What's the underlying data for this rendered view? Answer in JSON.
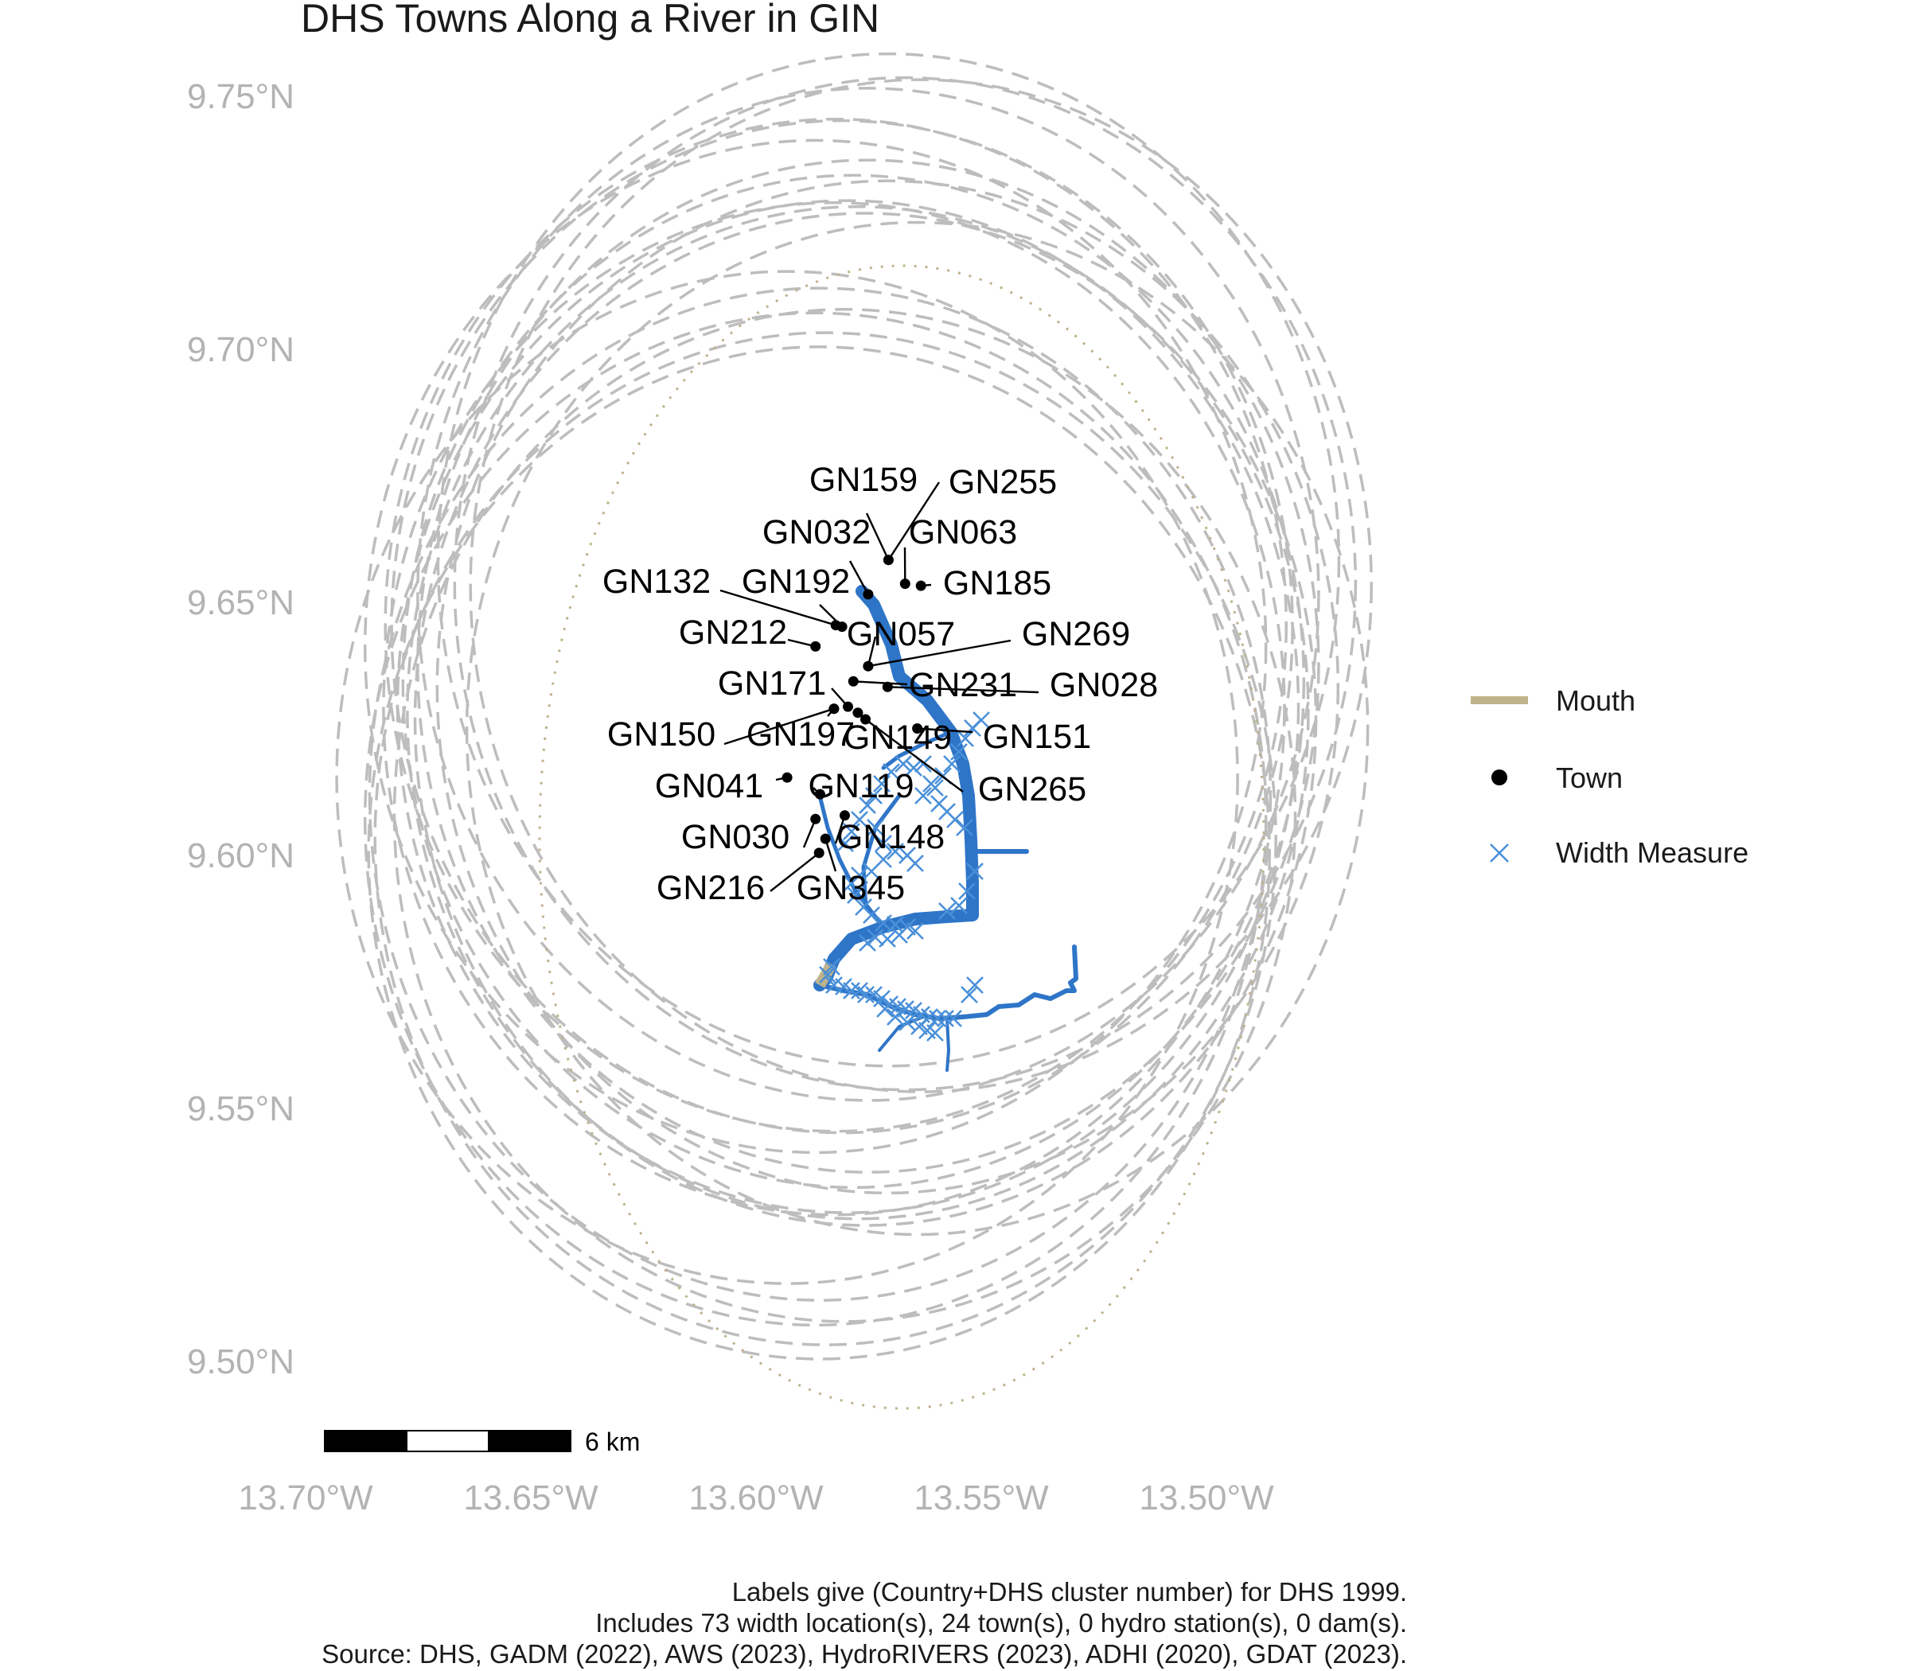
{
  "title": "DHS Towns Along a River in GIN",
  "axes": {
    "y_ticks": [
      "9.75°N",
      "9.70°N",
      "9.65°N",
      "9.60°N",
      "9.55°N",
      "9.50°N"
    ],
    "x_ticks": [
      "13.70°W",
      "13.65°W",
      "13.60°W",
      "13.55°W",
      "13.50°W"
    ]
  },
  "legend": {
    "items": [
      {
        "label": "Mouth",
        "color": "#bfb38a"
      },
      {
        "label": "Town",
        "color": "#000000"
      },
      {
        "label": "Width Measure",
        "color": "#4a90d9"
      }
    ]
  },
  "scale_bar": {
    "label": "6 km"
  },
  "caption": [
    "Labels give (Country+DHS cluster number) for DHS 1999.",
    "Includes 73 width location(s), 24 town(s), 0 hydro station(s), 0 dam(s).",
    "Source: DHS, GADM (2022), AWS (2023), HydroRIVERS (2023), ADHI (2020), GDAT (2023)."
  ],
  "colors": {
    "river": "#2e75c8",
    "width_measure": "#4a90d9",
    "buffer": "#bdbdbd",
    "mouth": "#bfb38a"
  },
  "towns": [
    {
      "label": "GN159",
      "lon": -13.5706,
      "lat": 9.6587
    },
    {
      "label": "GN255",
      "lon": -13.5706,
      "lat": 9.6587
    },
    {
      "label": "GN032",
      "lon": -13.5751,
      "lat": 9.6519
    },
    {
      "label": "GN063",
      "lon": -13.5669,
      "lat": 9.654
    },
    {
      "label": "GN185",
      "lon": -13.5634,
      "lat": 9.6536
    },
    {
      "label": "GN132",
      "lon": -13.5823,
      "lat": 9.6458
    },
    {
      "label": "GN192",
      "lon": -13.5809,
      "lat": 9.6455
    },
    {
      "label": "GN212",
      "lon": -13.5868,
      "lat": 9.6416
    },
    {
      "label": "GN057",
      "lon": -13.5751,
      "lat": 9.6377
    },
    {
      "label": "GN269",
      "lon": -13.5751,
      "lat": 9.6377
    },
    {
      "label": "GN231",
      "lon": -13.5784,
      "lat": 9.6347
    },
    {
      "label": "GN028",
      "lon": -13.5708,
      "lat": 9.6336
    },
    {
      "label": "GN171",
      "lon": -13.5796,
      "lat": 9.6297
    },
    {
      "label": "GN150",
      "lon": -13.5827,
      "lat": 9.6293
    },
    {
      "label": "GN197",
      "lon": -13.5827,
      "lat": 9.6293
    },
    {
      "label": "GN149",
      "lon": -13.5774,
      "lat": 9.6285
    },
    {
      "label": "GN151",
      "lon": -13.5642,
      "lat": 9.6254
    },
    {
      "label": "GN265",
      "lon": -13.5757,
      "lat": 9.6272
    },
    {
      "label": "GN041",
      "lon": -13.5931,
      "lat": 9.6157
    },
    {
      "label": "GN119",
      "lon": -13.5858,
      "lat": 9.6124
    },
    {
      "label": "GN030",
      "lon": -13.5868,
      "lat": 9.6075
    },
    {
      "label": "GN148",
      "lon": -13.5803,
      "lat": 9.6082
    },
    {
      "label": "GN216",
      "lon": -13.586,
      "lat": 9.6008
    },
    {
      "label": "GN345",
      "lon": -13.5846,
      "lat": 9.6036
    }
  ]
}
